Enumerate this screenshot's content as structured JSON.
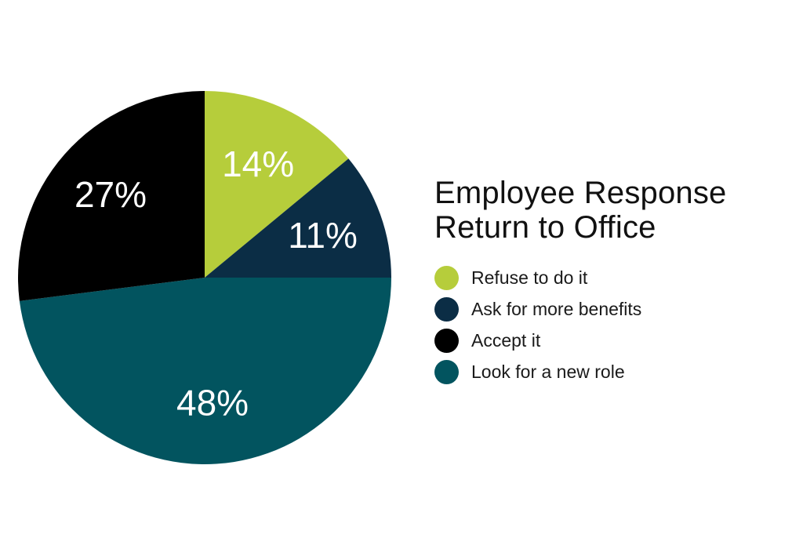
{
  "chart_data": {
    "type": "pie",
    "title": "Employee Response Return to Office",
    "title_lines": [
      "Employee Response",
      "Return to Office"
    ],
    "legend_position": "right",
    "slices": [
      {
        "label": "Refuse to do it",
        "value": 14,
        "value_label": "14%",
        "color": "#b6cd3b"
      },
      {
        "label": "Ask for more benefits",
        "value": 11,
        "value_label": "11%",
        "color": "#0b2d45"
      },
      {
        "label": "Look for a new role",
        "value": 48,
        "value_label": "48%",
        "color": "#02545f"
      },
      {
        "label": "Accept it",
        "value": 27,
        "value_label": "27%",
        "color": "#000000"
      }
    ],
    "legend": [
      {
        "label": "Refuse to do it",
        "color": "#b6cd3b"
      },
      {
        "label": "Ask for more benefits",
        "color": "#0b2d45"
      },
      {
        "label": "Accept it",
        "color": "#000000"
      },
      {
        "label": "Look for a new role",
        "color": "#02545f"
      }
    ]
  }
}
